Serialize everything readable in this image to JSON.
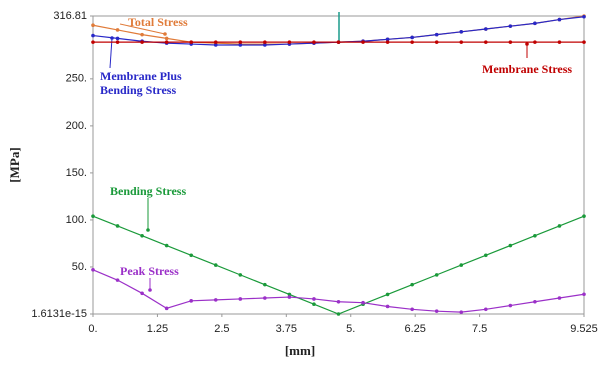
{
  "chart_data": {
    "type": "line",
    "x_label": "[mm]",
    "y_label": "[MPa]",
    "x": [
      0,
      0.47625,
      0.9525,
      1.42875,
      1.905,
      2.38125,
      2.8575,
      3.33375,
      3.81,
      4.28625,
      4.7625,
      5.23875,
      5.715,
      6.19125,
      6.6675,
      7.14375,
      7.62,
      8.09625,
      8.5725,
      9.04875,
      9.525
    ],
    "xlim": [
      0,
      9.525
    ],
    "xticks": [
      {
        "value": 0,
        "label": "0."
      },
      1.25,
      2.5,
      3.75,
      {
        "value": 5,
        "label": "5."
      },
      6.25,
      7.5,
      9.525
    ],
    "ylim": [
      1.6131e-15,
      316.81
    ],
    "yticks": [
      1.6131e-15,
      {
        "value": 50,
        "label": "50."
      },
      {
        "value": 100,
        "label": "100."
      },
      {
        "value": 150,
        "label": "150."
      },
      {
        "value": 200,
        "label": "200."
      },
      {
        "value": 250,
        "label": "250."
      },
      316.81
    ],
    "series": [
      {
        "name": "Total Stress",
        "color": "#e07b39",
        "values": [
          307,
          302,
          297,
          293,
          289,
          288,
          287,
          287,
          287,
          288,
          289,
          290,
          292,
          294,
          297,
          300,
          303,
          306,
          309,
          313,
          316.81
        ]
      },
      {
        "name": "Membrane Plus Bending Stress",
        "color": "#2828c8",
        "values": [
          296,
          293,
          290,
          288,
          287,
          286,
          286,
          286,
          287,
          288,
          289,
          290,
          292,
          294,
          297,
          300,
          303,
          306,
          309,
          313,
          316
        ]
      },
      {
        "name": "Membrane Stress",
        "color": "#c00000",
        "values": [
          289,
          289,
          289,
          289,
          289,
          289,
          289,
          289,
          289,
          289,
          289,
          289,
          289,
          289,
          289,
          289,
          289,
          289,
          289,
          289,
          289
        ]
      },
      {
        "name": "Bending Stress",
        "color": "#1a9a3a",
        "values": [
          104,
          93.6,
          83.2,
          72.8,
          62.4,
          52,
          41.6,
          31.2,
          20.8,
          10.4,
          0,
          10.4,
          20.8,
          31.2,
          41.6,
          52,
          62.4,
          72.8,
          83.2,
          93.6,
          104
        ]
      },
      {
        "name": "Peak Stress",
        "color": "#9b30c8",
        "values": [
          47,
          36,
          22,
          6,
          14,
          15,
          16,
          17,
          18,
          16,
          13,
          12,
          8,
          5,
          3,
          2,
          5,
          9,
          13,
          17,
          21
        ]
      }
    ]
  }
}
